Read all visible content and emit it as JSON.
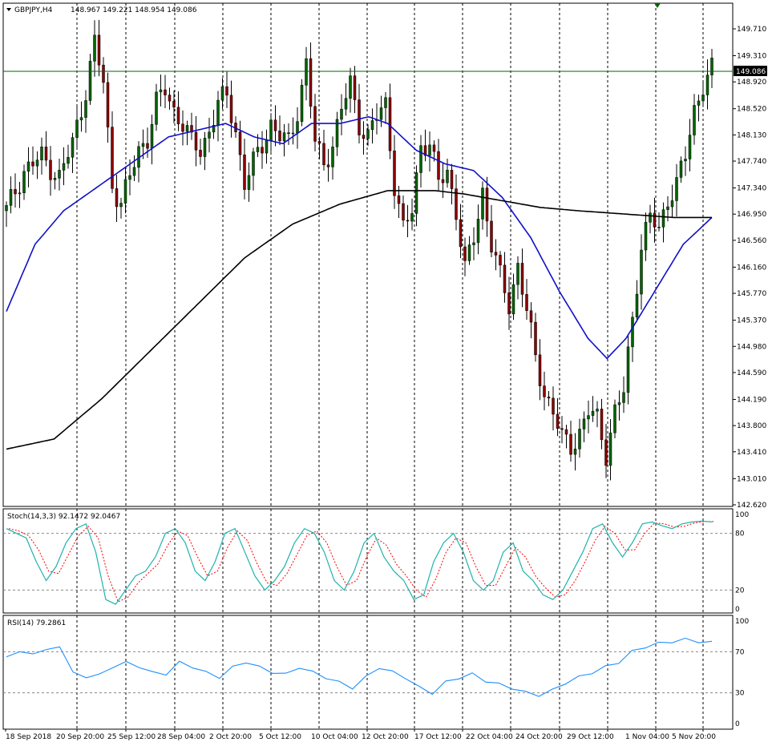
{
  "header": {
    "symbol": "GBPJPY,H4",
    "ohlc": "148.967 149.221 148.954 149.086"
  },
  "price_panel": {
    "current_price": "149.086",
    "y_ticks": [
      "149.710",
      "149.310",
      "148.920",
      "148.520",
      "148.130",
      "147.740",
      "147.340",
      "146.950",
      "146.560",
      "146.160",
      "145.770",
      "145.370",
      "144.980",
      "144.590",
      "144.190",
      "143.800",
      "143.410",
      "143.010",
      "142.620"
    ]
  },
  "stoch_panel": {
    "label": "Stoch(14,3,3) 92.1472 92.0467",
    "y_ticks": [
      "100",
      "80",
      "20",
      "0"
    ]
  },
  "rsi_panel": {
    "label": "RSI(14) 79.2861",
    "y_ticks": [
      "100",
      "70",
      "30",
      "0"
    ]
  },
  "x_labels": [
    "18 Sep 2018",
    "20 Sep 20:00",
    "25 Sep 12:00",
    "28 Sep 04:00",
    "2 Oct 20:00",
    "5 Oct 12:00",
    "10 Oct 04:00",
    "12 Oct 20:00",
    "17 Oct 12:00",
    "22 Oct 04:00",
    "24 Oct 20:00",
    "29 Oct 12:00",
    "1 Nov 04:00",
    "5 Nov 20:00"
  ],
  "colors": {
    "bull": "#006400",
    "bear": "#8B0000",
    "ma_fast": "#1010C8",
    "ma_slow": "#000000",
    "stoch_main": "#20B2AA",
    "stoch_signal": "#FF0000",
    "rsi": "#1E90FF",
    "price_line": "#006400"
  },
  "chart_data": [
    {
      "type": "candlestick",
      "title": "GBPJPY,H4",
      "ylim": [
        142.62,
        149.9
      ],
      "x_tick_labels": [
        "18 Sep 2018",
        "20 Sep 20:00",
        "25 Sep 12:00",
        "28 Sep 04:00",
        "2 Oct 20:00",
        "5 Oct 12:00",
        "10 Oct 04:00",
        "12 Oct 20:00",
        "17 Oct 12:00",
        "22 Oct 04:00",
        "24 Oct 20:00",
        "29 Oct 12:00",
        "1 Nov 04:00",
        "5 Nov 20:00"
      ],
      "close_path": [
        [
          0,
          147.0
        ],
        [
          4,
          147.6
        ],
        [
          8,
          147.8
        ],
        [
          12,
          147.5
        ],
        [
          15,
          148.0
        ],
        [
          18,
          148.8
        ],
        [
          20,
          149.5
        ],
        [
          22,
          148.9
        ],
        [
          24,
          147.4
        ],
        [
          26,
          147.1
        ],
        [
          28,
          147.5
        ],
        [
          30,
          147.9
        ],
        [
          32,
          148.1
        ],
        [
          34,
          148.6
        ],
        [
          36,
          148.8
        ],
        [
          38,
          148.5
        ],
        [
          40,
          148.3
        ],
        [
          42,
          148.0
        ],
        [
          44,
          147.9
        ],
        [
          46,
          148.2
        ],
        [
          48,
          148.6
        ],
        [
          50,
          148.7
        ],
        [
          52,
          148.2
        ],
        [
          54,
          147.4
        ],
        [
          56,
          147.7
        ],
        [
          58,
          148.0
        ],
        [
          60,
          148.3
        ],
        [
          62,
          148.1
        ],
        [
          64,
          148.0
        ],
        [
          66,
          148.5
        ],
        [
          68,
          149.2
        ],
        [
          70,
          148.0
        ],
        [
          72,
          147.7
        ],
        [
          74,
          148.0
        ],
        [
          76,
          148.5
        ],
        [
          78,
          148.9
        ],
        [
          80,
          148.3
        ],
        [
          82,
          148.1
        ],
        [
          84,
          148.4
        ],
        [
          86,
          148.6
        ],
        [
          88,
          147.4
        ],
        [
          90,
          146.7
        ],
        [
          92,
          147.0
        ],
        [
          94,
          148.0
        ],
        [
          96,
          148.0
        ],
        [
          98,
          147.4
        ],
        [
          100,
          147.6
        ],
        [
          102,
          147.0
        ],
        [
          104,
          146.1
        ],
        [
          106,
          146.6
        ],
        [
          108,
          147.3
        ],
        [
          110,
          146.5
        ],
        [
          112,
          146.0
        ],
        [
          114,
          145.6
        ],
        [
          116,
          146.2
        ],
        [
          118,
          145.5
        ],
        [
          120,
          144.8
        ],
        [
          122,
          144.3
        ],
        [
          124,
          144.0
        ],
        [
          126,
          143.6
        ],
        [
          128,
          143.5
        ],
        [
          130,
          143.7
        ],
        [
          132,
          144.0
        ],
        [
          134,
          143.9
        ],
        [
          136,
          143.4
        ],
        [
          138,
          144.0
        ],
        [
          140,
          144.3
        ],
        [
          142,
          145.4
        ],
        [
          144,
          146.5
        ],
        [
          146,
          146.9
        ],
        [
          148,
          146.7
        ],
        [
          150,
          147.2
        ],
        [
          152,
          147.4
        ],
        [
          154,
          147.8
        ],
        [
          156,
          148.5
        ],
        [
          158,
          148.9
        ],
        [
          160,
          149.09
        ]
      ],
      "ma_fast_path": [
        [
          0,
          145.5
        ],
        [
          6,
          146.5
        ],
        [
          12,
          147.0
        ],
        [
          20,
          147.4
        ],
        [
          28,
          147.8
        ],
        [
          34,
          148.1
        ],
        [
          40,
          148.2
        ],
        [
          46,
          148.3
        ],
        [
          52,
          148.1
        ],
        [
          58,
          148.0
        ],
        [
          64,
          148.3
        ],
        [
          70,
          148.3
        ],
        [
          76,
          148.4
        ],
        [
          80,
          148.3
        ],
        [
          86,
          147.9
        ],
        [
          92,
          147.7
        ],
        [
          98,
          147.6
        ],
        [
          104,
          147.2
        ],
        [
          110,
          146.6
        ],
        [
          116,
          145.8
        ],
        [
          122,
          145.1
        ],
        [
          126,
          144.8
        ],
        [
          130,
          145.1
        ],
        [
          136,
          145.8
        ],
        [
          142,
          146.5
        ],
        [
          148,
          146.9
        ]
      ],
      "ma_slow_path": [
        [
          0,
          143.45
        ],
        [
          10,
          143.6
        ],
        [
          20,
          144.2
        ],
        [
          30,
          144.9
        ],
        [
          40,
          145.6
        ],
        [
          50,
          146.3
        ],
        [
          60,
          146.8
        ],
        [
          70,
          147.1
        ],
        [
          80,
          147.3
        ],
        [
          90,
          147.3
        ],
        [
          96,
          147.25
        ],
        [
          104,
          147.15
        ],
        [
          112,
          147.05
        ],
        [
          120,
          147.0
        ],
        [
          130,
          146.95
        ],
        [
          140,
          146.9
        ],
        [
          148,
          146.9
        ]
      ]
    },
    {
      "type": "line",
      "title": "Stoch(14,3,3) 92.1472 92.0467",
      "ylim": [
        0,
        100
      ],
      "values": [
        85,
        80,
        75,
        50,
        30,
        45,
        70,
        85,
        90,
        60,
        10,
        5,
        20,
        35,
        40,
        55,
        80,
        85,
        70,
        40,
        30,
        50,
        80,
        85,
        60,
        35,
        20,
        30,
        45,
        70,
        85,
        80,
        60,
        30,
        20,
        40,
        70,
        80,
        55,
        40,
        30,
        10,
        15,
        50,
        70,
        80,
        60,
        30,
        20,
        30,
        60,
        70,
        40,
        30,
        15,
        10,
        20,
        40,
        60,
        85,
        90,
        70,
        55,
        70,
        90,
        92,
        88,
        85,
        90,
        92,
        93,
        92
      ]
    },
    {
      "type": "line",
      "title": "RSI(14) 79.2861",
      "ylim": [
        0,
        100
      ],
      "values": [
        65,
        70,
        68,
        72,
        75,
        50,
        45,
        48,
        55,
        60,
        55,
        50,
        48,
        60,
        55,
        50,
        45,
        55,
        60,
        55,
        50,
        48,
        55,
        50,
        45,
        40,
        35,
        45,
        55,
        50,
        45,
        35,
        30,
        40,
        45,
        48,
        42,
        38,
        35,
        30,
        28,
        32,
        40,
        45,
        50,
        55,
        60,
        70,
        75,
        78,
        80,
        82,
        80,
        79
      ]
    }
  ]
}
